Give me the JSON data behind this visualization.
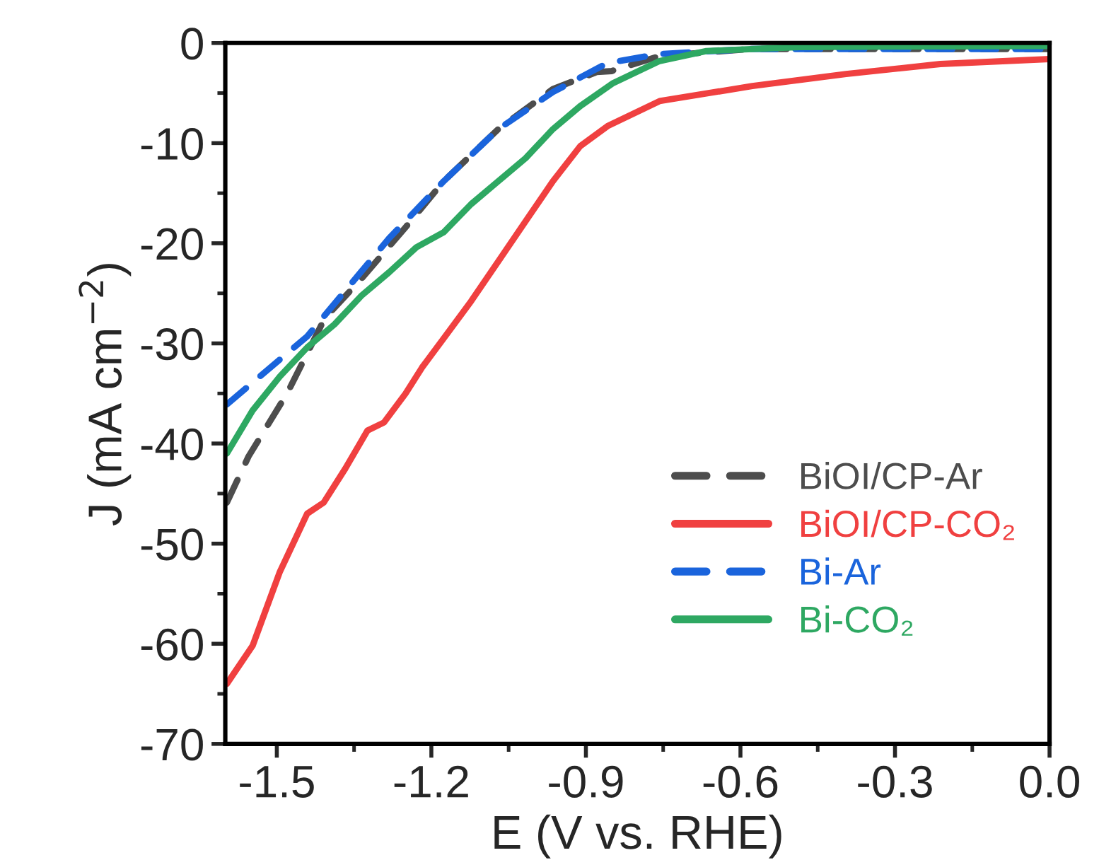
{
  "chart_data": {
    "type": "line",
    "xlabel": "E (V vs. RHE)",
    "ylabel": "J (mA cm$^{−2}$)",
    "xlim": [
      -1.6,
      0.0
    ],
    "ylim": [
      -70,
      0
    ],
    "xticks": [
      -1.5,
      -1.2,
      -0.9,
      -0.6,
      -0.3,
      {
        "value": 0.0,
        "label": "0.0"
      }
    ],
    "yticks": [
      -70,
      -60,
      -50,
      -40,
      -30,
      -20,
      -10,
      0
    ],
    "grid": false,
    "legend": "bottom right",
    "series": [
      {
        "name": "BiOI/CP-Ar",
        "color": "#4d4d4d",
        "line_style": "dashed",
        "x": [
          -1.597,
          -1.555,
          -1.48,
          -1.407,
          -1.335,
          -1.25,
          -1.176,
          -1.07,
          -0.964,
          -0.879,
          -0.85,
          -0.757,
          -0.58,
          0.0
        ],
        "values": [
          -45.9,
          -41.3,
          -35.0,
          -27.5,
          -23.5,
          -18.4,
          -13.8,
          -8.6,
          -4.6,
          -2.9,
          -2.8,
          -1.3,
          -0.6,
          -0.6
        ]
      },
      {
        "name": "BiOI/CP-CO₂",
        "color": "#f04040",
        "line_style": "solid",
        "x": [
          -1.597,
          -1.547,
          -1.494,
          -1.441,
          -1.409,
          -1.367,
          -1.324,
          -1.292,
          -1.25,
          -1.218,
          -1.176,
          -1.123,
          -1.07,
          -1.017,
          -0.964,
          -0.911,
          -0.858,
          -0.757,
          -0.577,
          -0.395,
          -0.212,
          0.0
        ],
        "values": [
          -64.0,
          -60.2,
          -52.8,
          -47.0,
          -45.9,
          -42.5,
          -38.7,
          -37.9,
          -35.0,
          -32.4,
          -29.5,
          -25.8,
          -21.8,
          -17.8,
          -13.8,
          -10.3,
          -8.3,
          -5.8,
          -4.3,
          -3.1,
          -2.1,
          -1.6
        ]
      },
      {
        "name": "Bi-Ar",
        "color": "#1a64dc",
        "line_style": "dashed",
        "x": [
          -1.597,
          -1.441,
          -1.282,
          -1.176,
          -1.07,
          -0.964,
          -0.858,
          -0.757,
          -0.58,
          0.0
        ],
        "values": [
          -36.1,
          -29.3,
          -19.5,
          -13.8,
          -8.6,
          -4.9,
          -2.0,
          -1.1,
          -0.6,
          -0.6
        ]
      },
      {
        "name": "Bi-CO₂",
        "color": "#2ea862",
        "line_style": "solid",
        "x": [
          -1.597,
          -1.547,
          -1.494,
          -1.441,
          -1.388,
          -1.335,
          -1.282,
          -1.229,
          -1.176,
          -1.123,
          -1.07,
          -1.017,
          -0.964,
          -0.911,
          -0.847,
          -0.757,
          -0.666,
          -0.485,
          0.0
        ],
        "values": [
          -41.0,
          -36.7,
          -33.3,
          -30.4,
          -28.1,
          -25.2,
          -22.9,
          -20.4,
          -18.9,
          -16.1,
          -13.8,
          -11.5,
          -8.6,
          -6.3,
          -4.0,
          -1.8,
          -0.8,
          -0.4,
          -0.3
        ]
      }
    ]
  }
}
